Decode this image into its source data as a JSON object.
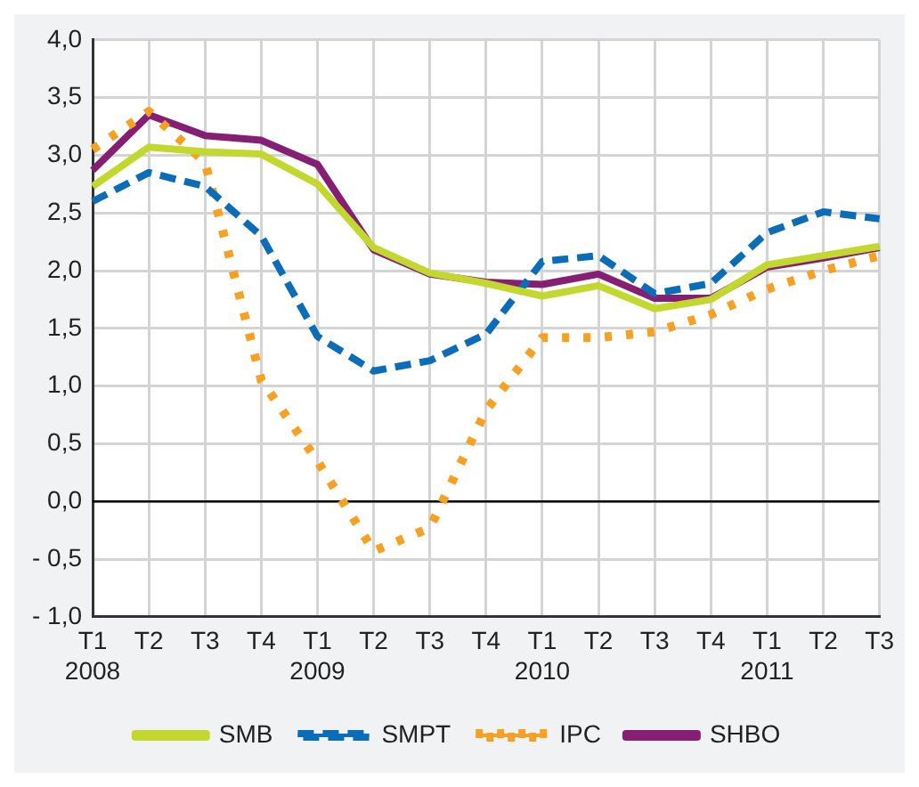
{
  "chart_data": {
    "type": "line",
    "categories": [
      "T1\n2008",
      "T2",
      "T3",
      "T4",
      "T1\n2009",
      "T2",
      "T3",
      "T4",
      "T1\n2010",
      "T2",
      "T3",
      "T4",
      "T1\n2011",
      "T2",
      "T3"
    ],
    "series": [
      {
        "name": "SMB",
        "color": "#c3d82e",
        "line_style": "solid",
        "values": [
          2.73,
          3.07,
          3.03,
          3.01,
          2.75,
          2.2,
          1.98,
          1.89,
          1.78,
          1.87,
          1.67,
          1.75,
          2.05,
          2.13,
          2.21
        ]
      },
      {
        "name": "SMPT",
        "color": "#0b6db7",
        "line_style": "dashed",
        "values": [
          2.6,
          2.85,
          2.73,
          2.3,
          1.43,
          1.13,
          1.22,
          1.45,
          2.08,
          2.13,
          1.8,
          1.89,
          2.33,
          2.51,
          2.45
        ]
      },
      {
        "name": "IPC",
        "color": "#f7a021",
        "line_style": "dotted",
        "values": [
          3.05,
          3.38,
          2.94,
          1.05,
          0.35,
          -0.43,
          -0.23,
          0.79,
          1.42,
          1.42,
          1.47,
          1.62,
          1.84,
          2.0,
          2.13
        ]
      },
      {
        "name": "SHBO",
        "color": "#861f74",
        "line_style": "solid",
        "values": [
          2.87,
          3.35,
          3.17,
          3.13,
          2.92,
          2.18,
          1.97,
          1.9,
          1.88,
          1.97,
          1.76,
          1.76,
          2.03,
          2.11,
          2.2
        ]
      }
    ],
    "ylim": [
      -1,
      4
    ],
    "yticks": [
      {
        "value": -1,
        "label": "- 1,0"
      },
      {
        "value": -0.5,
        "label": "- 0,5"
      },
      {
        "value": 0,
        "label": "0,0"
      },
      {
        "value": 0.5,
        "label": "0,5"
      },
      {
        "value": 1,
        "label": "1,0"
      },
      {
        "value": 1.5,
        "label": "1,5"
      },
      {
        "value": 2,
        "label": "2,0"
      },
      {
        "value": 2.5,
        "label": "2,5"
      },
      {
        "value": 3,
        "label": "3,0"
      },
      {
        "value": 3.5,
        "label": "3,5"
      },
      {
        "value": 4,
        "label": "4,0"
      }
    ],
    "ref_lines": [
      {
        "axis": "y",
        "value": 0,
        "color": "#000000"
      }
    ],
    "grid": true,
    "legend": "bottom",
    "marker": "none"
  }
}
